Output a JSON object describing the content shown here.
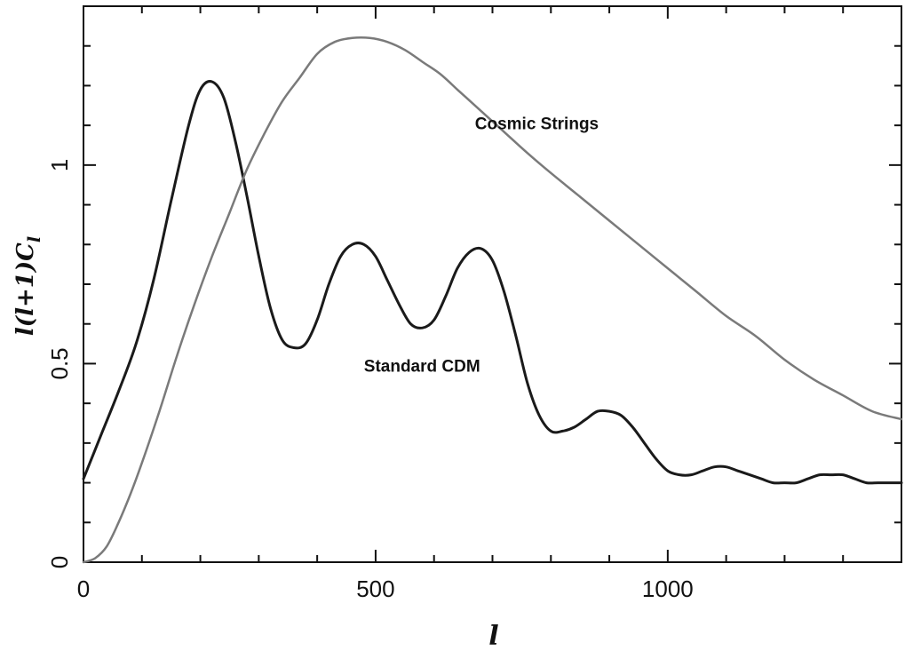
{
  "chart_data": {
    "type": "line",
    "xlabel": "l",
    "ylabel": "l(l+1)C",
    "ylabel_sub": "l",
    "xlim": [
      0,
      1400
    ],
    "ylim": [
      0,
      1.4
    ],
    "x_ticks": [
      {
        "value": 0,
        "label": "0"
      },
      {
        "value": 500,
        "label": "500"
      },
      {
        "value": 1000,
        "label": "1000"
      }
    ],
    "y_ticks": [
      {
        "value": 0,
        "label": "0"
      },
      {
        "value": 0.5,
        "label": "0.5"
      },
      {
        "value": 1,
        "label": "1"
      }
    ],
    "series": [
      {
        "name": "Standard CDM",
        "color": "#1a1a1a",
        "x": [
          0,
          30,
          60,
          90,
          120,
          150,
          180,
          200,
          220,
          240,
          260,
          280,
          300,
          320,
          340,
          360,
          380,
          400,
          420,
          440,
          460,
          480,
          500,
          520,
          540,
          560,
          580,
          600,
          620,
          640,
          660,
          680,
          700,
          720,
          740,
          760,
          780,
          800,
          820,
          840,
          860,
          880,
          900,
          920,
          940,
          960,
          980,
          1000,
          1020,
          1040,
          1060,
          1080,
          1100,
          1120,
          1140,
          1160,
          1180,
          1200,
          1220,
          1240,
          1260,
          1280,
          1300,
          1320,
          1340,
          1360,
          1380,
          1400
        ],
        "y": [
          0.21,
          0.32,
          0.43,
          0.55,
          0.71,
          0.91,
          1.1,
          1.19,
          1.21,
          1.17,
          1.06,
          0.92,
          0.77,
          0.64,
          0.56,
          0.54,
          0.55,
          0.61,
          0.7,
          0.77,
          0.8,
          0.8,
          0.77,
          0.71,
          0.65,
          0.6,
          0.59,
          0.61,
          0.67,
          0.74,
          0.78,
          0.79,
          0.76,
          0.68,
          0.57,
          0.45,
          0.37,
          0.33,
          0.33,
          0.34,
          0.36,
          0.38,
          0.38,
          0.37,
          0.34,
          0.3,
          0.26,
          0.23,
          0.22,
          0.22,
          0.23,
          0.24,
          0.24,
          0.23,
          0.22,
          0.21,
          0.2,
          0.2,
          0.2,
          0.21,
          0.22,
          0.22,
          0.22,
          0.21,
          0.2,
          0.2,
          0.2,
          0.2
        ]
      },
      {
        "name": "Cosmic Strings",
        "color": "#7a7a7a",
        "x": [
          0,
          20,
          40,
          60,
          80,
          100,
          130,
          160,
          190,
          220,
          250,
          280,
          310,
          340,
          370,
          400,
          430,
          460,
          490,
          520,
          550,
          580,
          610,
          640,
          670,
          700,
          730,
          760,
          800,
          850,
          900,
          950,
          1000,
          1050,
          1100,
          1150,
          1200,
          1250,
          1300,
          1350,
          1400
        ],
        "y": [
          0,
          0.01,
          0.04,
          0.1,
          0.17,
          0.25,
          0.38,
          0.52,
          0.65,
          0.77,
          0.88,
          0.99,
          1.08,
          1.16,
          1.22,
          1.28,
          1.31,
          1.32,
          1.32,
          1.31,
          1.29,
          1.26,
          1.23,
          1.19,
          1.15,
          1.11,
          1.07,
          1.03,
          0.98,
          0.92,
          0.86,
          0.8,
          0.74,
          0.68,
          0.62,
          0.57,
          0.51,
          0.46,
          0.42,
          0.38,
          0.36
        ]
      }
    ],
    "annotations": [
      {
        "text": "Cosmic Strings",
        "x": 670,
        "y": 1.09
      },
      {
        "text": "Standard CDM",
        "x": 480,
        "y": 0.48
      }
    ]
  }
}
